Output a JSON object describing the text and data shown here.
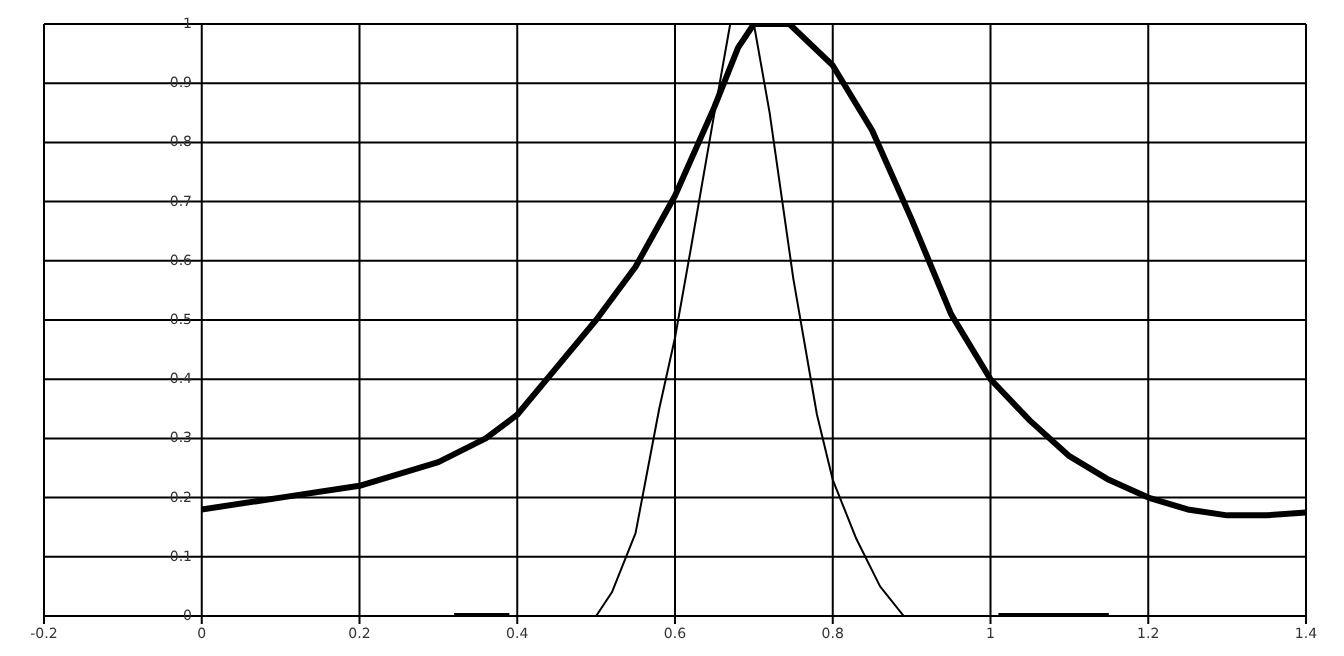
{
  "chart_data": {
    "type": "line",
    "xlim": [
      -0.2,
      1.4
    ],
    "ylim": [
      0,
      1
    ],
    "xticks": [
      -0.2,
      0,
      0.2,
      0.4,
      0.6,
      0.8,
      1,
      1.2,
      1.4
    ],
    "yticks": [
      0,
      0.1,
      0.2,
      0.3,
      0.4,
      0.5,
      0.6,
      0.7,
      0.8,
      0.9,
      1
    ],
    "grid": true,
    "marker": "none",
    "line_style": "solid",
    "series": [
      {
        "color": "#000000",
        "x": [
          0,
          0.1,
          0.2,
          0.3,
          0.36,
          0.4,
          0.45,
          0.5,
          0.55,
          0.6,
          0.65,
          0.68,
          0.7,
          0.745,
          0.8,
          0.85,
          0.9,
          0.95,
          1,
          1.05,
          1.1,
          1.15,
          1.2,
          1.25,
          1.3,
          1.35,
          1.4
        ],
        "values": [
          0.18,
          0.2,
          0.22,
          0.26,
          0.3,
          0.34,
          0.42,
          0.5,
          0.59,
          0.71,
          0.86,
          0.96,
          1,
          1,
          0.93,
          0.82,
          0.67,
          0.51,
          0.4,
          0.33,
          0.27,
          0.23,
          0.2,
          0.18,
          0.17,
          0.17,
          0.175
        ]
      },
      {
        "color": "#000000",
        "x": [
          0.5,
          0.52,
          0.55,
          0.58,
          0.6,
          0.62,
          0.65,
          0.67,
          0.7,
          0.72,
          0.75,
          0.78,
          0.8,
          0.83,
          0.86,
          0.89
        ],
        "values": [
          0,
          0.04,
          0.14,
          0.35,
          0.47,
          0.62,
          0.85,
          1,
          1,
          0.85,
          0.57,
          0.34,
          0.23,
          0.13,
          0.05,
          0
        ]
      },
      {
        "color": "#000000",
        "x": [
          0.32,
          0.39,
          0.395,
          1.01,
          1.15
        ],
        "values": [
          0,
          0,
          null,
          0,
          0
        ]
      }
    ]
  }
}
